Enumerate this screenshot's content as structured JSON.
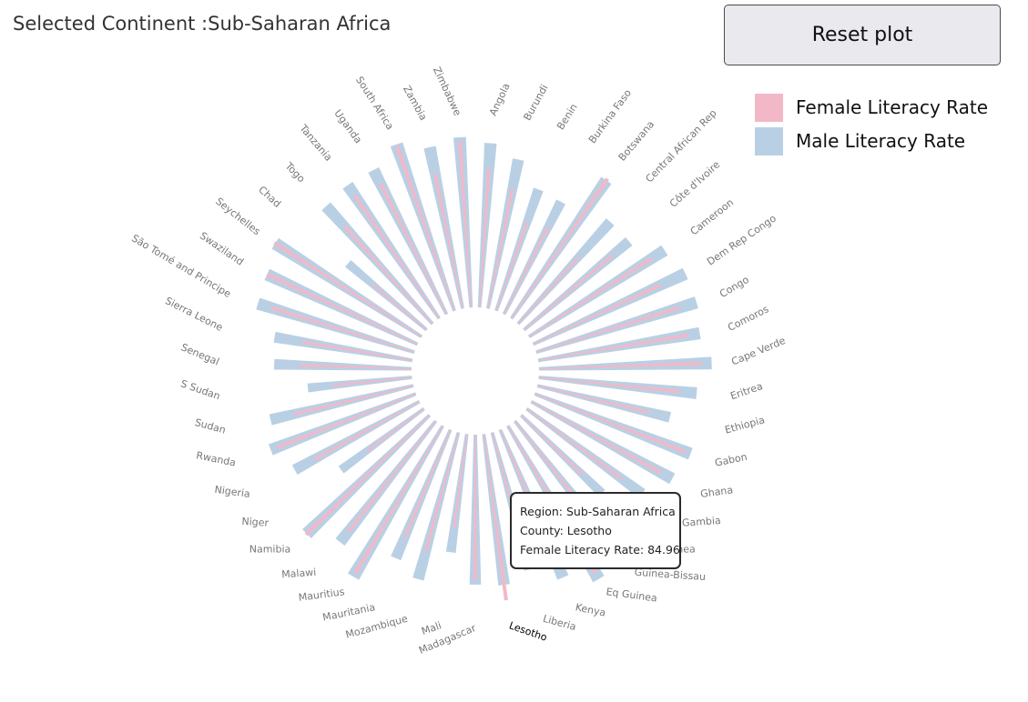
{
  "header": {
    "title": "Selected Continent :Sub-Saharan Africa",
    "reset_label": "Reset plot"
  },
  "legend": [
    {
      "label": "Female Literacy Rate",
      "color": "#f2b8c8"
    },
    {
      "label": "Male Literacy Rate",
      "color": "#b9d0e4"
    }
  ],
  "tooltip": {
    "region": "Region: Sub-Saharan Africa",
    "country": "County: Lesotho",
    "value": "Female Literacy Rate: 84.96"
  },
  "chart_data": {
    "type": "radial-bar",
    "highlighted": "Lesotho",
    "series_names": [
      "Female Literacy Rate",
      "Male Literacy Rate"
    ],
    "categories": [
      "Angola",
      "Burundi",
      "Benin",
      "Burkina Faso",
      "Botswana",
      "Central African Rep",
      "Côte d'Ivoire",
      "Cameroon",
      "Dem Rep Congo",
      "Congo",
      "Comoros",
      "Cape Verde",
      "Eritrea",
      "Ethiopia",
      "Gabon",
      "Ghana",
      "Gambia",
      "Guinea",
      "Guinea-Bissau",
      "Eq Guinea",
      "Kenya",
      "Liberia",
      "Lesotho",
      "Madagascar",
      "Mali",
      "Mozambique",
      "Mauritania",
      "Mauritius",
      "Malawi",
      "Namibia",
      "Niger",
      "Nigeria",
      "Rwanda",
      "Sudan",
      "S Sudan",
      "Senegal",
      "Sierra Leone",
      "São Tomé and Principe",
      "Swaziland",
      "Seychelles",
      "Chad",
      "Togo",
      "Tanzania",
      "Uganda",
      "South Africa",
      "Zambia",
      "Zimbabwe"
    ],
    "female": [
      59,
      45,
      27,
      29,
      87,
      24,
      41,
      64,
      59,
      68,
      70,
      80,
      61,
      39,
      79,
      66,
      42,
      22,
      43,
      88,
      68,
      33,
      85,
      64,
      27,
      46,
      41,
      89,
      60,
      89,
      15,
      43,
      66,
      45,
      19,
      38,
      38,
      68,
      83,
      92,
      15,
      52,
      68,
      65,
      92,
      57,
      84
    ],
    "male": [
      82,
      70,
      50,
      48,
      85,
      57,
      57,
      78,
      85,
      85,
      81,
      90,
      76,
      56,
      84,
      78,
      62,
      38,
      65,
      96,
      78,
      61,
      70,
      68,
      43,
      70,
      59,
      93,
      72,
      88,
      32,
      61,
      73,
      65,
      33,
      57,
      59,
      81,
      83,
      91,
      32,
      76,
      79,
      79,
      94,
      82,
      88
    ]
  }
}
